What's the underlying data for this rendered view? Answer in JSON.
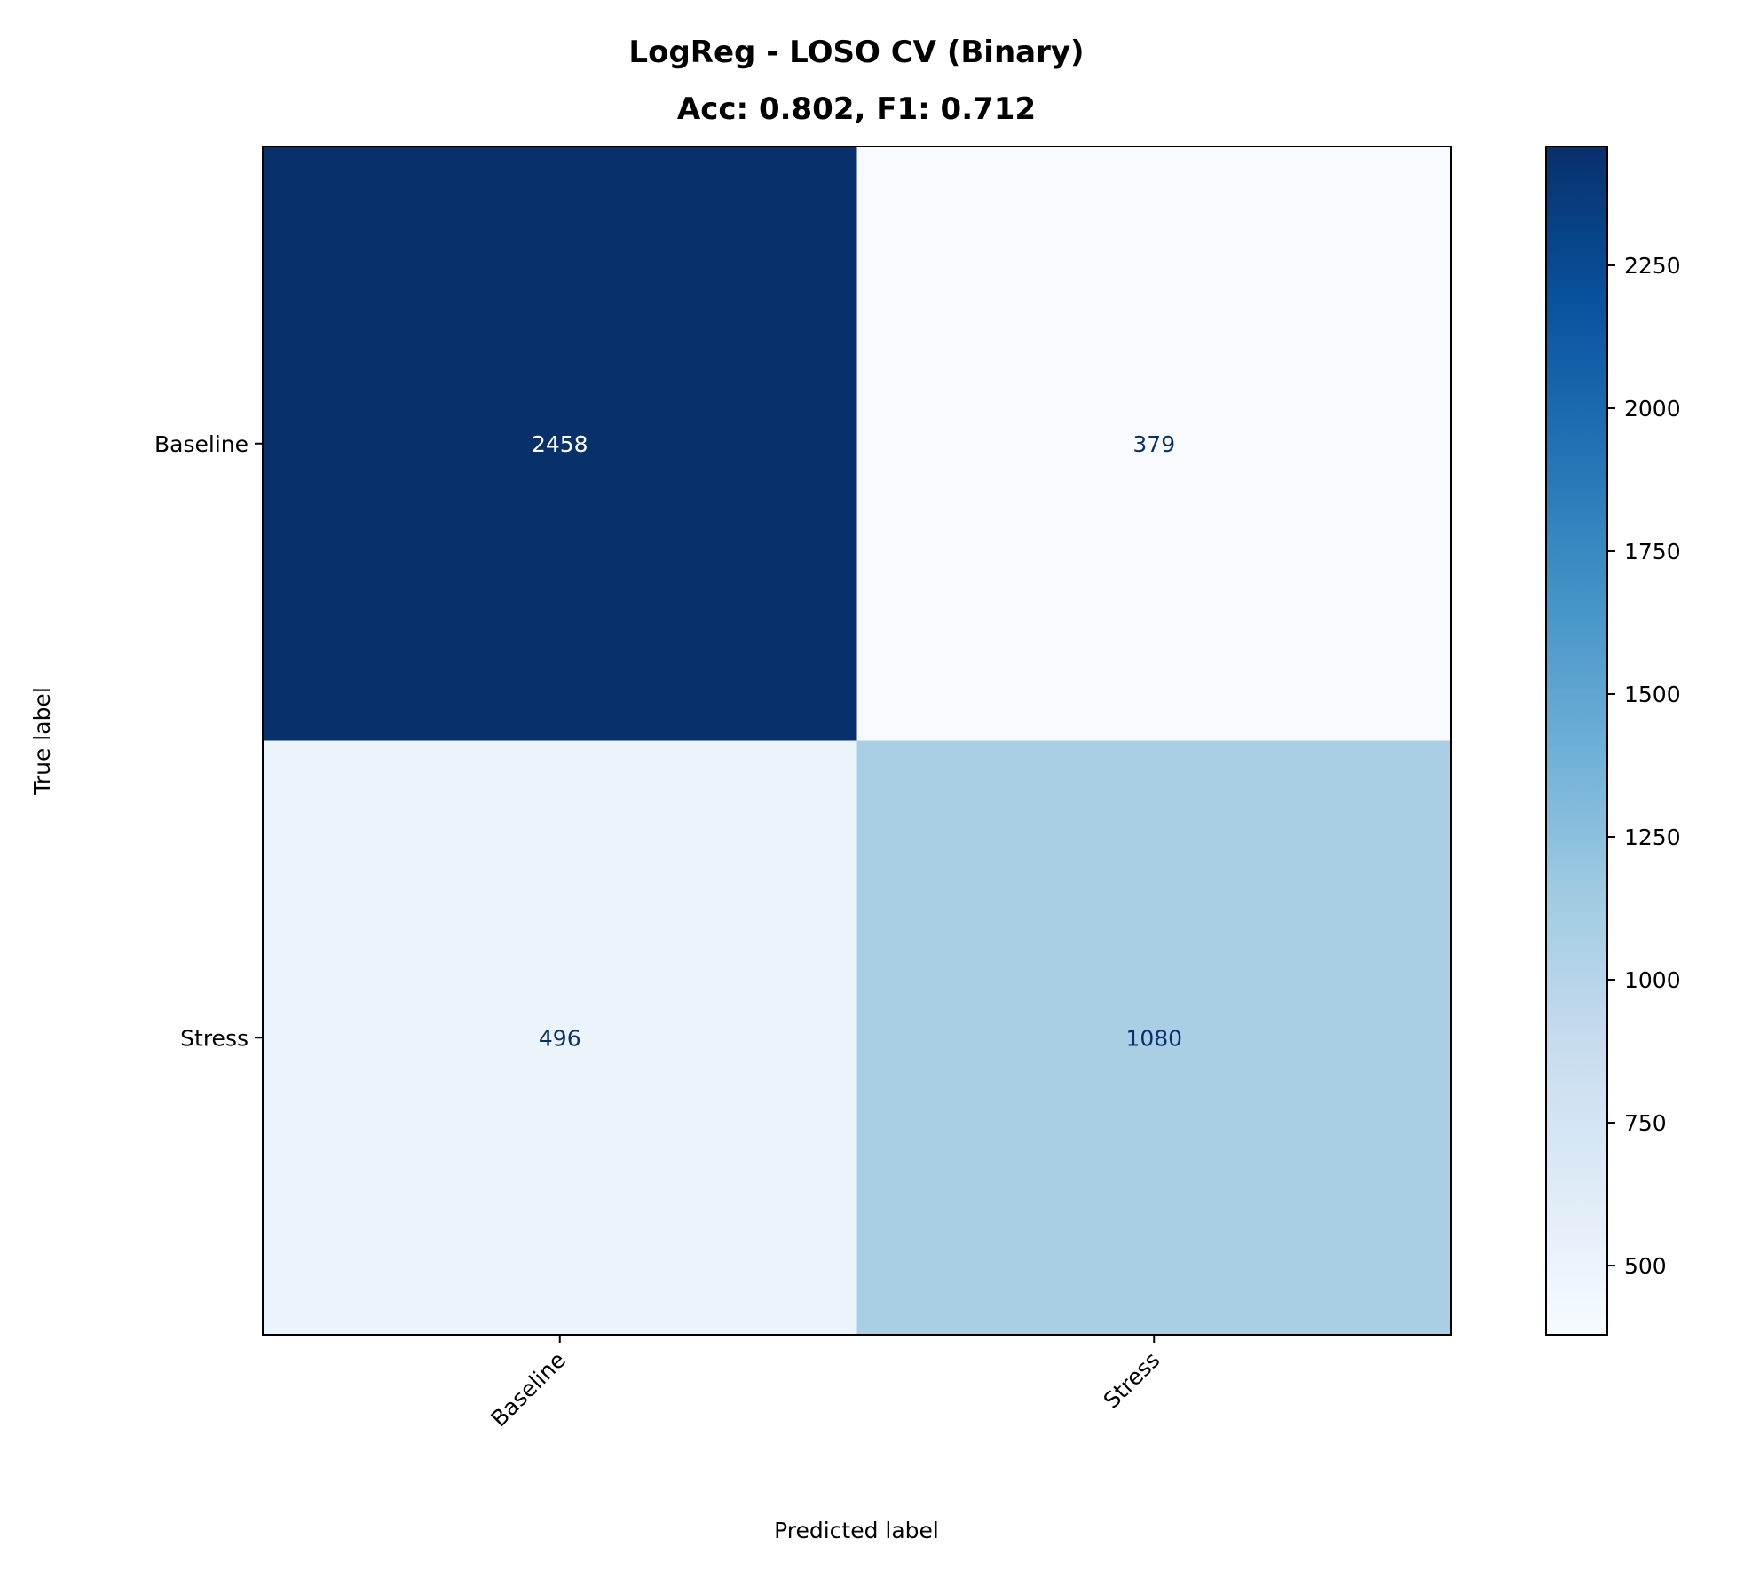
{
  "chart_data": {
    "type": "heatmap",
    "title": "LogReg - LOSO CV (Binary)",
    "subtitle": "Acc: 0.802, F1: 0.712",
    "xlabel": "Predicted label",
    "ylabel": "True label",
    "x_categories": [
      "Baseline",
      "Stress"
    ],
    "y_categories": [
      "Baseline",
      "Stress"
    ],
    "values": [
      [
        2458,
        379
      ],
      [
        496,
        1080
      ]
    ],
    "colormap": "Blues",
    "colorbar": {
      "range": [
        379,
        2458
      ],
      "ticks": [
        500,
        750,
        1000,
        1250,
        1500,
        1750,
        2000,
        2250
      ]
    },
    "text_colors": {
      "dark": "#ffffff",
      "light": "#08306b"
    }
  }
}
